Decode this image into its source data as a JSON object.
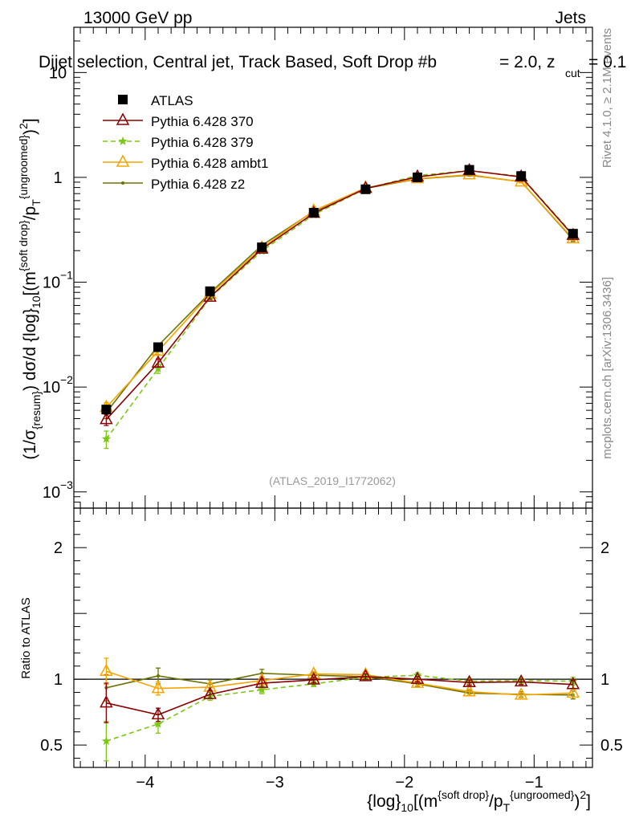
{
  "header": {
    "energy_label": "13000 GeV pp",
    "category_label": "Jets",
    "title": "Dijet selection, Central jet, Track Based, Soft Drop #b = 2.0, z_cut = 0.1",
    "title_main": "Dijet selection, Central jet, Track Based, Soft Drop #b",
    "title_beta": "= 2.0, z",
    "title_cut": "cut",
    "title_end": "= 0.1"
  },
  "side_text": {
    "rivet": "Rivet 4.1.0, ≥ 2.1M events",
    "mcplots": "mcplots.cern.ch [arXiv:1306.3436]"
  },
  "watermark": "(ATLAS_2019_I1772062)",
  "axis_labels": {
    "ylabel_main": "(1/σ{resum}) dσ/d {log}10[(m{soft drop}/pT{ungroomed})²]",
    "ylabel_ratio": "Ratio to ATLAS",
    "xlabel": "{log}10[(m{soft drop}/pT{ungroomed})²]",
    "yl_1": "(1/σ",
    "yl_resum": "{resum}",
    "yl_2": ") dσ/d {log}",
    "yl_10": "10",
    "yl_3": "[(m",
    "yl_sd": "{soft drop}",
    "yl_4": "/p",
    "yl_T": "T",
    "yl_ung": "{ungroomed}",
    "yl_5": ")",
    "yl_sq": "2",
    "yl_6": "]",
    "xl_1": "{log}",
    "xl_10": "10",
    "xl_2": "[(m",
    "xl_sd": "{soft drop}",
    "xl_3": "/p",
    "xl_T": "T",
    "xl_ung": "{ungroomed}",
    "xl_4": ")",
    "xl_sq": "2",
    "xl_5": "]"
  },
  "ticks": {
    "x": [
      {
        "v": -4,
        "label": "−4"
      },
      {
        "v": -3,
        "label": "−3"
      },
      {
        "v": -2,
        "label": "−2"
      },
      {
        "v": -1,
        "label": "−1"
      }
    ],
    "y_main": [
      {
        "exp": -3,
        "base": "10",
        "sup": "−3"
      },
      {
        "exp": -2,
        "base": "10",
        "sup": "−2"
      },
      {
        "exp": -1,
        "base": "10",
        "sup": "−1"
      },
      {
        "exp": 0,
        "base": "1",
        "sup": ""
      },
      {
        "exp": 1,
        "base": "10",
        "sup": ""
      }
    ],
    "y_ratio": [
      {
        "v": 0.5,
        "label": "0.5"
      },
      {
        "v": 1,
        "label": "1"
      },
      {
        "v": 2,
        "label": "2"
      }
    ]
  },
  "legend": [
    {
      "key": "atlas",
      "label": "ATLAS"
    },
    {
      "key": "p370",
      "label": "Pythia 6.428 370"
    },
    {
      "key": "p379",
      "label": "Pythia 6.428 379"
    },
    {
      "key": "ambt1",
      "label": "Pythia 6.428 ambt1"
    },
    {
      "key": "z2",
      "label": "Pythia 6.428 z2"
    }
  ],
  "colors": {
    "atlas": "#000000",
    "p370": "#8b0000",
    "p379": "#7cc714",
    "ambt1": "#f5a400",
    "z2": "#6b7200"
  },
  "chart_data": [
    {
      "type": "line",
      "title": "Dijet selection, Central jet, Track Based, Soft Drop #b = 2.0, z_cut = 0.1",
      "xlabel": "{log}10[(m{soft drop}/pT{ungroomed})^2]",
      "ylabel": "(1/sigma{resum}) dsigma/d {log}10[(m{soft drop}/pT{ungroomed})^2]",
      "yscale": "log",
      "xlim": [
        -4.55,
        -0.55
      ],
      "ylim": [
        0.0007,
        27
      ],
      "x": [
        -4.3,
        -3.9,
        -3.5,
        -3.1,
        -2.7,
        -2.3,
        -1.9,
        -1.5,
        -1.1,
        -0.7
      ],
      "series": [
        {
          "name": "ATLAS",
          "key": "atlas",
          "marker": "square",
          "values": [
            0.0061,
            0.024,
            0.082,
            0.215,
            0.46,
            0.77,
            1.0,
            1.18,
            1.03,
            0.29
          ],
          "errors": [
            0.0007,
            0.002,
            0.005,
            0.01,
            0.02,
            0.03,
            0.04,
            0.05,
            0.05,
            0.02
          ]
        },
        {
          "name": "Pythia 6.428 370",
          "key": "p370",
          "marker": "triangle-open",
          "dash": "solid",
          "values": [
            0.0049,
            0.017,
            0.072,
            0.207,
            0.455,
            0.785,
            1.01,
            1.16,
            1.01,
            0.28
          ],
          "errors": [
            0.0006,
            0.0015,
            0.003,
            0.006,
            0.01,
            0.012,
            0.015,
            0.02,
            0.02,
            0.01
          ]
        },
        {
          "name": "Pythia 6.428 379",
          "key": "p379",
          "marker": "star",
          "dash": "dashed",
          "values": [
            0.0032,
            0.015,
            0.071,
            0.198,
            0.44,
            0.78,
            1.04,
            1.16,
            1.02,
            0.285
          ],
          "errors": [
            0.0006,
            0.0015,
            0.003,
            0.006,
            0.01,
            0.012,
            0.015,
            0.02,
            0.02,
            0.01
          ]
        },
        {
          "name": "Pythia 6.428 ambt1",
          "key": "ambt1",
          "marker": "triangle-open",
          "dash": "solid",
          "values": [
            0.0064,
            0.022,
            0.077,
            0.213,
            0.48,
            0.795,
            0.97,
            1.06,
            0.905,
            0.26
          ],
          "errors": [
            0.0007,
            0.0015,
            0.003,
            0.006,
            0.01,
            0.012,
            0.015,
            0.02,
            0.02,
            0.01
          ]
        },
        {
          "name": "Pythia 6.428 z2",
          "key": "z2",
          "marker": "dot",
          "dash": "solid",
          "values": [
            0.0057,
            0.0248,
            0.079,
            0.225,
            0.474,
            0.785,
            0.965,
            1.05,
            0.91,
            0.255
          ],
          "errors": [
            0.0007,
            0.0015,
            0.003,
            0.006,
            0.01,
            0.012,
            0.015,
            0.02,
            0.02,
            0.01
          ]
        }
      ]
    },
    {
      "type": "line",
      "title": "Ratio to ATLAS",
      "ylabel": "Ratio to ATLAS",
      "xlim": [
        -4.55,
        -0.55
      ],
      "ylim": [
        0.33,
        2.3
      ],
      "x": [
        -4.3,
        -3.9,
        -3.5,
        -3.1,
        -2.7,
        -2.3,
        -1.9,
        -1.5,
        -1.1,
        -0.7
      ],
      "reference_line": 1,
      "series": [
        {
          "name": "Pythia 6.428 370",
          "key": "p370",
          "values": [
            0.82,
            0.73,
            0.885,
            0.97,
            0.995,
            1.02,
            1.0,
            0.975,
            0.98,
            0.96
          ],
          "errors": [
            0.15,
            0.05,
            0.03,
            0.03,
            0.02,
            0.02,
            0.02,
            0.02,
            0.02,
            0.03
          ]
        },
        {
          "name": "Pythia 6.428 379",
          "key": "p379",
          "values": [
            0.53,
            0.66,
            0.87,
            0.92,
            0.965,
            1.015,
            1.03,
            0.985,
            0.99,
            0.985
          ],
          "errors": [
            0.15,
            0.07,
            0.03,
            0.03,
            0.02,
            0.02,
            0.02,
            0.02,
            0.02,
            0.03
          ]
        },
        {
          "name": "Pythia 6.428 ambt1",
          "key": "ambt1",
          "values": [
            1.06,
            0.93,
            0.94,
            0.99,
            1.04,
            1.035,
            0.97,
            0.905,
            0.88,
            0.895
          ],
          "errors": [
            0.1,
            0.05,
            0.03,
            0.03,
            0.02,
            0.02,
            0.02,
            0.02,
            0.02,
            0.03
          ]
        },
        {
          "name": "Pythia 6.428 z2",
          "key": "z2",
          "values": [
            0.935,
            1.025,
            0.965,
            1.045,
            1.03,
            1.02,
            0.965,
            0.895,
            0.885,
            0.88
          ],
          "errors": [
            0.1,
            0.06,
            0.03,
            0.03,
            0.02,
            0.02,
            0.02,
            0.02,
            0.02,
            0.03
          ]
        }
      ]
    }
  ]
}
